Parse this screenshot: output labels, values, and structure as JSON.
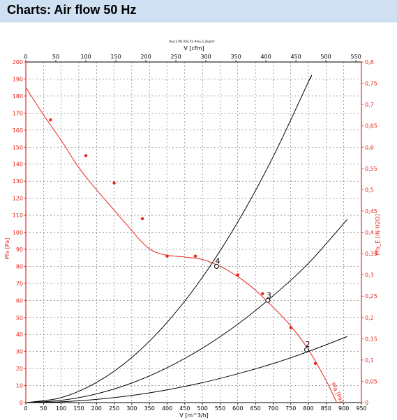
{
  "page": {
    "title": "Charts: Air flow 50 Hz"
  },
  "colors": {
    "red": "#e8241c",
    "black": "#000000",
    "header_bg": "#cfe0f3"
  },
  "chart_data": {
    "type": "line",
    "title": "Druck Pfa [Pa] für Rho=1,2kg/m³",
    "xlabel": "V [m^3/h]",
    "xlabel_top": "V [cfm]",
    "ylabel": "Pfa [Pa]",
    "ylabel_right": "Pfa_E [IN H2O]",
    "xlim": [
      0,
      950
    ],
    "ylim": [
      0,
      200
    ],
    "x_ticks": [
      0,
      50,
      100,
      150,
      200,
      250,
      300,
      350,
      400,
      450,
      500,
      550,
      600,
      650,
      700,
      750,
      800,
      850,
      900,
      950
    ],
    "y_ticks": [
      0,
      10,
      20,
      30,
      40,
      50,
      60,
      70,
      80,
      90,
      100,
      110,
      120,
      130,
      140,
      150,
      160,
      170,
      180,
      190,
      200
    ],
    "top_ticks": [
      0,
      50,
      100,
      150,
      200,
      250,
      300,
      350,
      400,
      450,
      500,
      550
    ],
    "right_ticks": [
      "0",
      "0,05",
      "0,1",
      "0,15",
      "0,2",
      "0,25",
      "0,3",
      "0,35",
      "0,4",
      "0,45",
      "0,5",
      "0,55",
      "0,6",
      "0,65",
      "0,7",
      "0,75",
      "0,8"
    ],
    "grid": true,
    "series": [
      {
        "role": "fan-curve",
        "color": "#e8241c",
        "label": "Pfa [Pa]",
        "points": [
          [
            0,
            185
          ],
          [
            50,
            169
          ],
          [
            100,
            154
          ],
          [
            150,
            138
          ],
          [
            200,
            125
          ],
          [
            250,
            113
          ],
          [
            300,
            101
          ],
          [
            330,
            94
          ],
          [
            360,
            89
          ],
          [
            400,
            86.5
          ],
          [
            450,
            85.5
          ],
          [
            500,
            84
          ],
          [
            550,
            80
          ],
          [
            600,
            74
          ],
          [
            650,
            66
          ],
          [
            700,
            56
          ],
          [
            750,
            45
          ],
          [
            800,
            31
          ],
          [
            850,
            13
          ],
          [
            880,
            0
          ]
        ],
        "markers": [
          [
            70,
            166
          ],
          [
            170,
            145
          ],
          [
            250,
            129
          ],
          [
            330,
            108
          ],
          [
            400,
            86
          ],
          [
            480,
            86
          ],
          [
            600,
            75
          ],
          [
            670,
            64
          ],
          [
            750,
            44
          ],
          [
            820,
            23
          ]
        ]
      },
      {
        "role": "system-curve",
        "color": "#000000",
        "label": "4",
        "label_at": [
          540,
          80
        ],
        "points": [
          [
            0,
            0
          ],
          [
            100,
            2.9
          ],
          [
            200,
            11.8
          ],
          [
            300,
            26.5
          ],
          [
            400,
            47.1
          ],
          [
            500,
            73.6
          ],
          [
            600,
            106
          ],
          [
            700,
            144.3
          ],
          [
            800,
            188.4
          ],
          [
            805,
            190
          ]
        ]
      },
      {
        "role": "system-curve",
        "color": "#000000",
        "label": "3",
        "label_at": [
          685,
          60
        ],
        "points": [
          [
            0,
            0
          ],
          [
            100,
            1.3
          ],
          [
            200,
            5.1
          ],
          [
            300,
            11.5
          ],
          [
            400,
            20.5
          ],
          [
            500,
            32
          ],
          [
            600,
            46
          ],
          [
            700,
            62.7
          ],
          [
            800,
            81.8
          ],
          [
            910,
            107.6
          ]
        ]
      },
      {
        "role": "system-curve",
        "color": "#000000",
        "label": "2",
        "label_at": [
          795,
          31
        ],
        "points": [
          [
            0,
            0
          ],
          [
            100,
            0.47
          ],
          [
            200,
            1.9
          ],
          [
            300,
            4.2
          ],
          [
            400,
            7.5
          ],
          [
            500,
            11.7
          ],
          [
            600,
            16.9
          ],
          [
            700,
            22.9
          ],
          [
            800,
            30
          ],
          [
            910,
            38.8
          ]
        ]
      }
    ],
    "annotations": [
      {
        "text": "Pfa [Pa]",
        "color": "#e8241c"
      }
    ]
  }
}
